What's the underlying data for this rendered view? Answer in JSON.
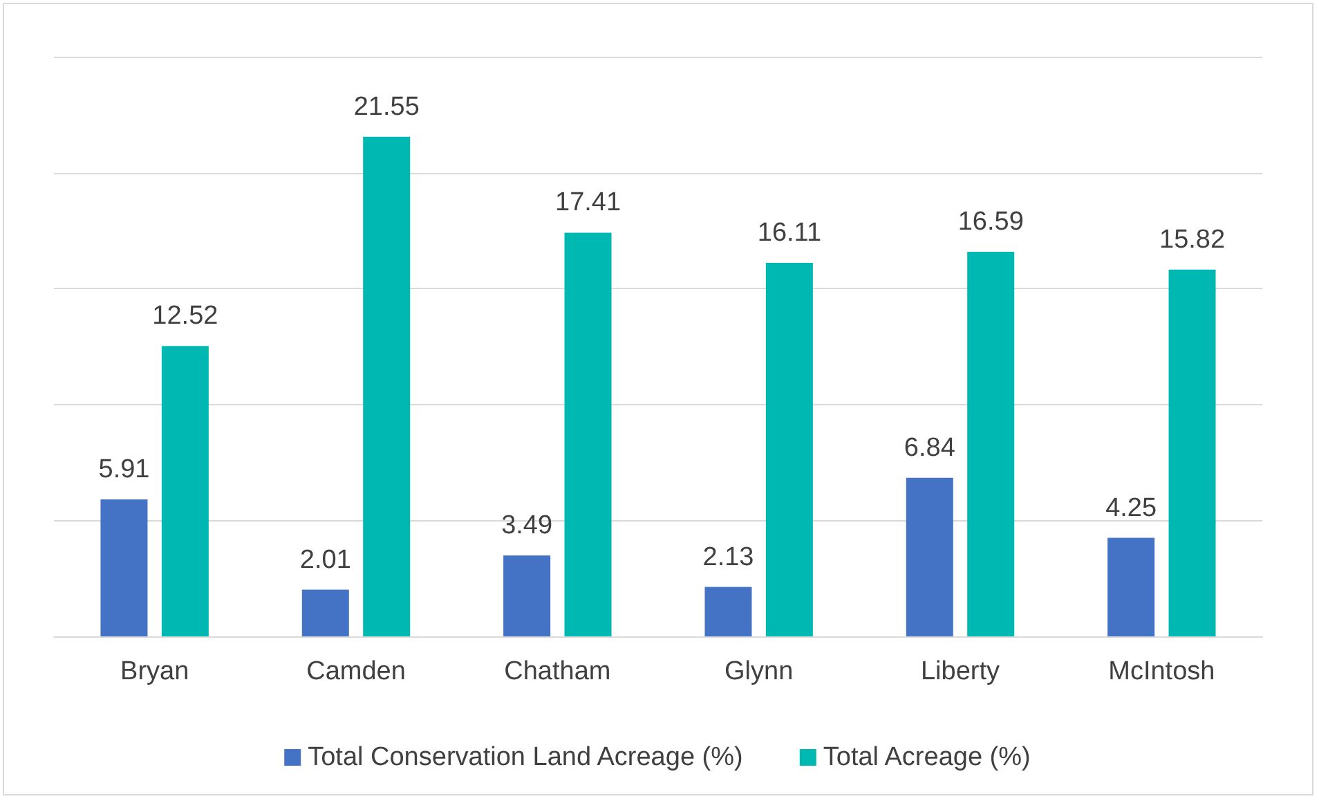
{
  "chart_data": {
    "type": "bar",
    "categories": [
      "Bryan",
      "Camden",
      "Chatham",
      "Glynn",
      "Liberty",
      "McIntosh"
    ],
    "series": [
      {
        "name": "Total Conservation Land Acreage (%)",
        "color": "#4472c4",
        "values": [
          5.91,
          2.01,
          3.49,
          2.13,
          6.84,
          4.25
        ]
      },
      {
        "name": "Total Acreage (%)",
        "color": "#00b8b2",
        "values": [
          12.52,
          21.55,
          17.41,
          16.11,
          16.59,
          15.82
        ]
      }
    ],
    "ylim": [
      0,
      25
    ],
    "yticks": [
      {
        "value": 0,
        "label": null
      },
      {
        "value": 5,
        "label": null
      },
      {
        "value": 10,
        "label": null
      },
      {
        "value": 15,
        "label": null
      },
      {
        "value": 20,
        "label": null
      },
      {
        "value": 25,
        "label": null
      }
    ],
    "grid": "y",
    "tick_labels": "x",
    "legend": "bottom",
    "data_labels": true
  }
}
